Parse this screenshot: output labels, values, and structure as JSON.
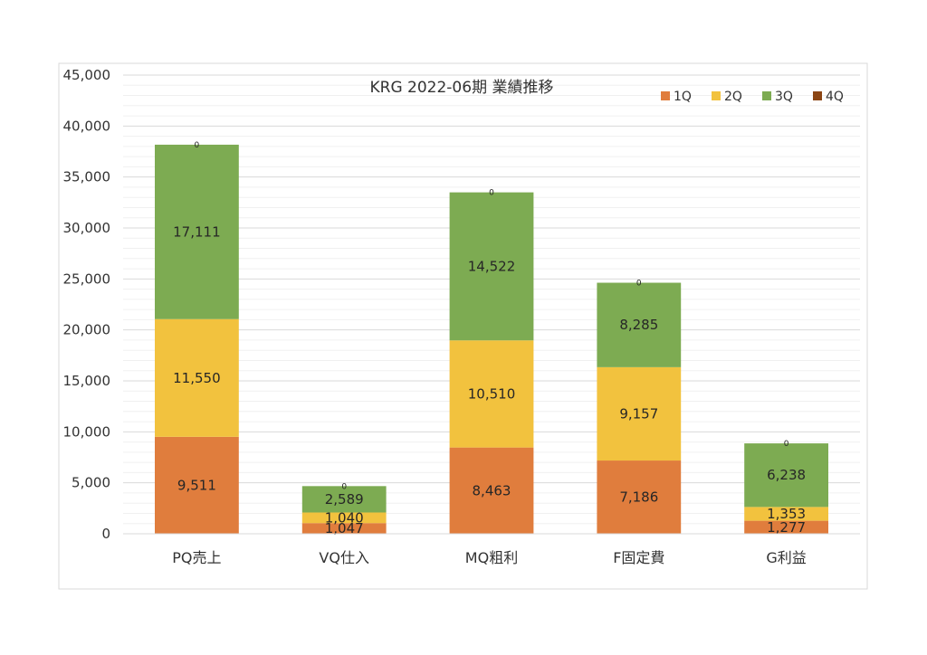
{
  "chart_data": {
    "type": "bar",
    "stacked": true,
    "title": "KRG 2022-06期 業績推移",
    "categories": [
      "PQ売上",
      "VQ仕入",
      "MQ粗利",
      "F固定費",
      "G利益"
    ],
    "series": [
      {
        "name": "1Q",
        "color": "#e07d3d",
        "values": [
          9511,
          1047,
          8463,
          7186,
          1277
        ]
      },
      {
        "name": "2Q",
        "color": "#f2c23e",
        "values": [
          11550,
          1040,
          10510,
          9157,
          1353
        ]
      },
      {
        "name": "3Q",
        "color": "#7dab52",
        "values": [
          17111,
          2589,
          14522,
          8285,
          6238
        ]
      },
      {
        "name": "4Q",
        "color": "#8b4513",
        "values": [
          0,
          0,
          0,
          0,
          0
        ]
      }
    ],
    "ylim": [
      0,
      45000
    ],
    "yticks": [
      0,
      5000,
      10000,
      15000,
      20000,
      25000,
      30000,
      35000,
      40000,
      45000
    ],
    "ytick_labels": [
      "0",
      "5,000",
      "10,000",
      "15,000",
      "20,000",
      "25,000",
      "30,000",
      "35,000",
      "40,000",
      "45,000"
    ],
    "grid": true,
    "legend_position": "top-right",
    "xlabel": "",
    "ylabel": ""
  }
}
